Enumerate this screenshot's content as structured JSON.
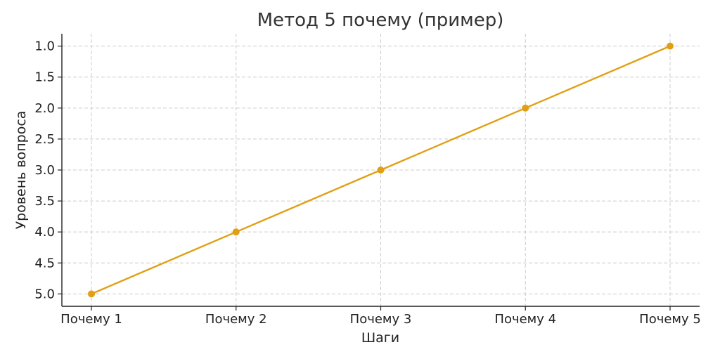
{
  "chart_data": {
    "type": "line",
    "title": "Метод 5 почему (пример)",
    "xlabel": "Шаги",
    "ylabel": "Уровень вопроса",
    "categories": [
      "Почему 1",
      "Почему 2",
      "Почему 3",
      "Почему 4",
      "Почему 5"
    ],
    "series": [
      {
        "values": [
          5.0,
          4.0,
          3.0,
          2.0,
          1.0
        ],
        "color": "#E1A014"
      }
    ],
    "ylim": [
      5.2,
      0.8
    ],
    "yticks": [
      "1.0",
      "1.5",
      "2.0",
      "2.5",
      "3.0",
      "3.5",
      "4.0",
      "4.5",
      "5.0"
    ],
    "y_inverted": true,
    "grid": true,
    "legend": "none"
  }
}
